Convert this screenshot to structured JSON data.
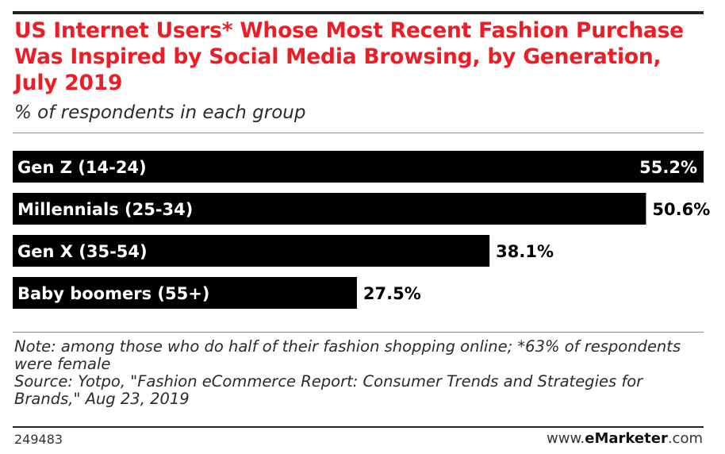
{
  "header": {
    "title": "US Internet Users* Whose Most Recent Fashion Purchase Was Inspired by Social Media Browsing, by Generation, July 2019",
    "subtitle": "% of respondents in each group"
  },
  "chart_data": {
    "type": "bar",
    "orientation": "horizontal",
    "title": "US Internet Users* Whose Most Recent Fashion Purchase Was Inspired by Social Media Browsing, by Generation, July 2019",
    "subtitle": "% of respondents in each group",
    "categories": [
      "Gen Z (14-24)",
      "Millennials (25-34)",
      "Gen X (35-54)",
      "Baby boomers (55+)"
    ],
    "values": [
      55.2,
      50.6,
      38.1,
      27.5
    ],
    "value_labels": [
      "55.2%",
      "50.6%",
      "38.1%",
      "27.5%"
    ],
    "xlim": [
      0,
      55.2
    ],
    "grid": false,
    "bar_color": "#000000"
  },
  "notes": {
    "note": "Note: among those who do half of their fashion shopping online; *63% of respondents were female",
    "source": "Source: Yotpo, \"Fashion eCommerce Report: Consumer Trends and Strategies for Brands,\" Aug 23, 2019"
  },
  "footer": {
    "chart_id": "249483",
    "site_prefix": "www.",
    "site_brand_e": "e",
    "site_brand_rest": "Marketer",
    "site_suffix": ".com"
  },
  "colors": {
    "title": "#ec1d24",
    "bars": "#000000",
    "label_inside": "#ffffff",
    "label_outside": "#000000"
  }
}
